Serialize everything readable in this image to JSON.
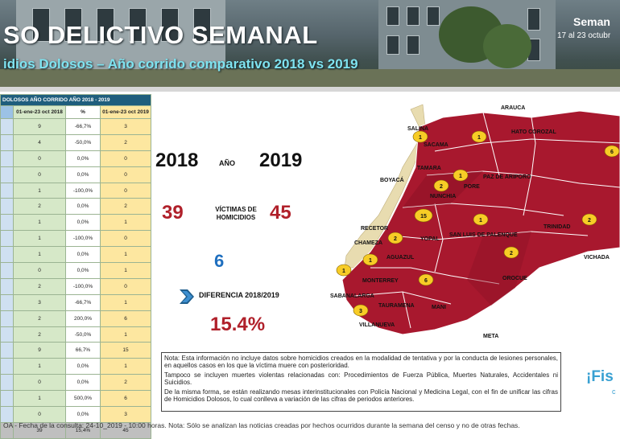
{
  "header": {
    "title": "SO DELICTIVO SEMANAL",
    "subtitle": "idios Dolosos – Año corrido comparativo 2018 vs 2019",
    "week_label": "Seman",
    "week_dates": "17 al 23 octubr"
  },
  "table": {
    "title": "DOLOSOS AÑO CORRIDO AÑO 2018 - 2019",
    "headers": [
      "",
      "01-ene-23 oct 2018",
      "%",
      "01-ene-23 oct 2019"
    ],
    "rows": [
      [
        "",
        "9",
        "-66,7%",
        "3"
      ],
      [
        "",
        "4",
        "-50,0%",
        "2"
      ],
      [
        "",
        "0",
        "0,0%",
        "0"
      ],
      [
        "",
        "0",
        "0,0%",
        "0"
      ],
      [
        "",
        "1",
        "-100,0%",
        "0"
      ],
      [
        "",
        "2",
        "0,0%",
        "2"
      ],
      [
        "",
        "1",
        "0,0%",
        "1"
      ],
      [
        "",
        "1",
        "-100,0%",
        "0"
      ],
      [
        "",
        "1",
        "0,0%",
        "1"
      ],
      [
        "",
        "0",
        "0,0%",
        "1"
      ],
      [
        "",
        "2",
        "-100,0%",
        "0"
      ],
      [
        "",
        "3",
        "-66,7%",
        "1"
      ],
      [
        "",
        "2",
        "200,0%",
        "6"
      ],
      [
        "",
        "2",
        "-50,0%",
        "1"
      ],
      [
        "",
        "9",
        "66,7%",
        "15"
      ],
      [
        "",
        "1",
        "0,0%",
        "1"
      ],
      [
        "",
        "0",
        "0,0%",
        "2"
      ],
      [
        "",
        "1",
        "500,0%",
        "6"
      ],
      [
        "",
        "0",
        "0,0%",
        "3"
      ]
    ],
    "total": [
      "",
      "39",
      "15,4%",
      "45"
    ]
  },
  "stats": {
    "year_2018": "2018",
    "ano_label": "AÑO",
    "year_2019": "2019",
    "victims_2018": "39",
    "victims_label": "VÍCTIMAS DE HOMICIDIOS",
    "victims_2019": "45",
    "difference_value": "6",
    "difference_label": "DIFERENCIA 2018/2019",
    "difference_pct": "15.4%"
  },
  "map": {
    "labels": {
      "arauca": "ARAUCA",
      "hato_corozal": "HATO COROZAL",
      "sacama": "SACAMA",
      "salina": "SALINA",
      "tamara": "TAMARA",
      "boyaca": "BOYACÁ",
      "paz_de_ariporo": "PAZ DE ARIPORO",
      "pore": "PORE",
      "nunchia": "NUNCHIA",
      "recetor": "RECETOR",
      "chameza": "CHAMEZA",
      "yopal": "YOPAL",
      "san_luis": "SAN LUIS DE PALENQUE",
      "trinidad": "TRINIDAD",
      "aguazul": "AGUAZUL",
      "vichada": "VICHADA",
      "orocue": "OROCUE",
      "monterrey": "MONTERREY",
      "sabanalarga": "SABANALARGA",
      "tauramena": "TAURAMENA",
      "mani": "MANI",
      "villanueva": "VILLANUEVA",
      "meta": "META"
    },
    "markers": {
      "salina": "1",
      "hato_corozal": "1",
      "east": "6",
      "pore": "1",
      "nunchia": "2",
      "yopal": "15",
      "san_luis": "1",
      "trinidad": "2",
      "aguazul": "2",
      "west": "1",
      "monterrey": "1",
      "orocue": "2",
      "mani": "6",
      "villanueva": "3"
    },
    "colors": {
      "region": "#a8182e",
      "region_dark": "#8d1226",
      "border": "#ffffff",
      "marker": "#f7cc26",
      "tan": "#e8dcb0"
    }
  },
  "note": {
    "p1": "Nota: Esta información no incluye datos sobre homicidios creados en la modalidad de tentativa y por la conducta de lesiones personales, en aquellos casos en los que la víctima muere con posterioridad.",
    "p2": "Tampoco se incluyen muertes violentas relacionadas con: Procedimientos de Fuerza Pública, Muertes Naturales, Accidentales ni Suicidios.",
    "p3": "De la misma forma, se están realizando mesas interinstitucionales con Policía Nacional y Medicina Legal, con el fin de unificar las cifras de Homicidios Dolosos, lo cual conlleva a variación de las cifras de periodos anteriores."
  },
  "logo": {
    "text": "¡Fis",
    "sub": "c"
  },
  "footer": {
    "text": "OA - Fecha de la consulta: 24-10_2019 - 10:00 horas. Nota: Sólo se analizan las noticias creadas por hechos ocurridos durante la semana del censo y no de otras fechas."
  }
}
